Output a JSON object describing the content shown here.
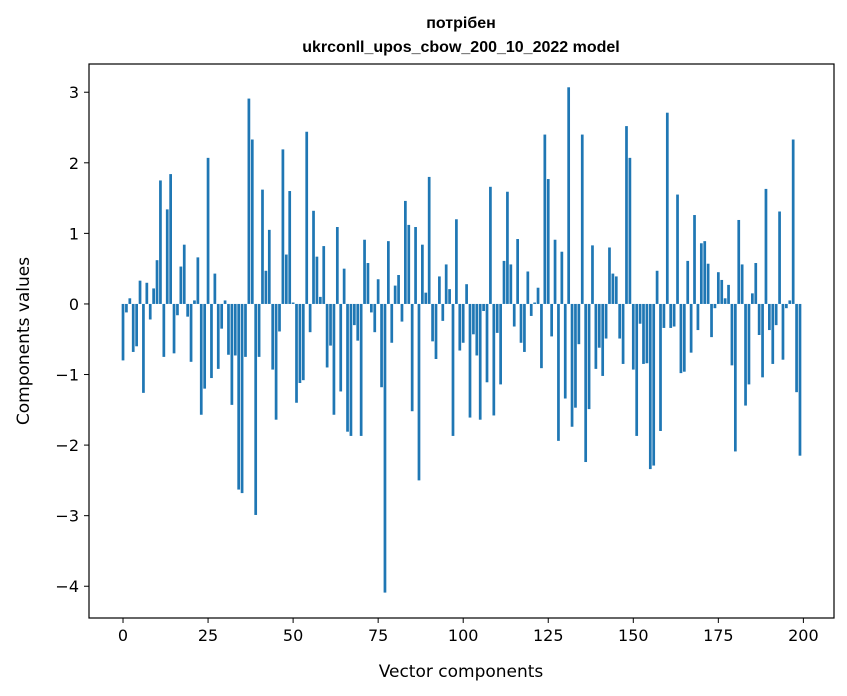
{
  "chart_data": {
    "type": "bar",
    "title_line1": "потрібен",
    "title_line2": "ukrconll_upos_cbow_200_10_2022 model",
    "xlabel": "Vector components",
    "ylabel": "Components values",
    "xlim": [
      -10,
      209
    ],
    "ylim": [
      -4.45,
      3.4
    ],
    "x_ticks": [
      0,
      25,
      50,
      75,
      100,
      125,
      150,
      175,
      200
    ],
    "y_ticks": [
      -4,
      -3,
      -2,
      -1,
      0,
      1,
      2,
      3
    ],
    "grid": false,
    "color": "#1f77b4",
    "x": [
      0,
      1,
      2,
      3,
      4,
      5,
      6,
      7,
      8,
      9,
      10,
      11,
      12,
      13,
      14,
      15,
      16,
      17,
      18,
      19,
      20,
      21,
      22,
      23,
      24,
      25,
      26,
      27,
      28,
      29,
      30,
      31,
      32,
      33,
      34,
      35,
      36,
      37,
      38,
      39,
      40,
      41,
      42,
      43,
      44,
      45,
      46,
      47,
      48,
      49,
      50,
      51,
      52,
      53,
      54,
      55,
      56,
      57,
      58,
      59,
      60,
      61,
      62,
      63,
      64,
      65,
      66,
      67,
      68,
      69,
      70,
      71,
      72,
      73,
      74,
      75,
      76,
      77,
      78,
      79,
      80,
      81,
      82,
      83,
      84,
      85,
      86,
      87,
      88,
      89,
      90,
      91,
      92,
      93,
      94,
      95,
      96,
      97,
      98,
      99,
      100,
      101,
      102,
      103,
      104,
      105,
      106,
      107,
      108,
      109,
      110,
      111,
      112,
      113,
      114,
      115,
      116,
      117,
      118,
      119,
      120,
      121,
      122,
      123,
      124,
      125,
      126,
      127,
      128,
      129,
      130,
      131,
      132,
      133,
      134,
      135,
      136,
      137,
      138,
      139,
      140,
      141,
      142,
      143,
      144,
      145,
      146,
      147,
      148,
      149,
      150,
      151,
      152,
      153,
      154,
      155,
      156,
      157,
      158,
      159,
      160,
      161,
      162,
      163,
      164,
      165,
      166,
      167,
      168,
      169,
      170,
      171,
      172,
      173,
      174,
      175,
      176,
      177,
      178,
      179,
      180,
      181,
      182,
      183,
      184,
      185,
      186,
      187,
      188,
      189,
      190,
      191,
      192,
      193,
      194,
      195,
      196,
      197,
      198,
      199
    ],
    "values": [
      -0.8,
      -0.12,
      0.08,
      -0.68,
      -0.6,
      0.33,
      -1.26,
      0.3,
      -0.22,
      0.22,
      0.62,
      1.75,
      -0.75,
      1.34,
      1.84,
      -0.7,
      -0.16,
      0.53,
      0.84,
      -0.18,
      -0.82,
      0.05,
      0.66,
      -1.57,
      -1.2,
      2.07,
      -1.05,
      0.43,
      -0.92,
      -0.35,
      0.05,
      -0.72,
      -1.43,
      -0.73,
      -2.63,
      -2.68,
      -0.75,
      2.91,
      2.33,
      -2.99,
      -0.75,
      1.62,
      0.47,
      1.05,
      -0.93,
      -1.64,
      -0.39,
      2.19,
      0.7,
      1.6,
      0.02,
      -1.4,
      -1.12,
      -1.08,
      2.44,
      -0.4,
      1.32,
      0.67,
      0.1,
      0.82,
      -0.9,
      -0.59,
      -1.57,
      1.09,
      -1.24,
      0.5,
      -1.81,
      -1.87,
      -0.3,
      -0.52,
      -1.87,
      0.91,
      0.58,
      -0.12,
      -0.4,
      0.35,
      -1.18,
      -4.09,
      0.89,
      -0.55,
      0.26,
      0.41,
      -0.25,
      1.46,
      1.12,
      -1.52,
      1.09,
      -2.5,
      0.84,
      0.16,
      1.8,
      -0.53,
      -0.78,
      0.39,
      -0.24,
      0.56,
      0.21,
      -1.87,
      1.2,
      -0.66,
      -0.55,
      0.28,
      -1.61,
      -0.43,
      -0.73,
      -1.64,
      -0.1,
      -1.11,
      1.66,
      -1.58,
      -0.41,
      -1.14,
      0.61,
      1.59,
      0.56,
      -0.32,
      0.92,
      -0.55,
      -0.68,
      0.46,
      -0.17,
      0.02,
      0.23,
      -0.91,
      2.4,
      1.77,
      -0.46,
      0.91,
      -1.94,
      0.74,
      -1.34,
      3.07,
      -1.74,
      -1.47,
      -0.57,
      2.4,
      -2.24,
      -1.49,
      0.83,
      -0.92,
      -0.62,
      -1.02,
      -0.49,
      0.8,
      0.43,
      0.39,
      -0.49,
      -0.85,
      2.52,
      2.07,
      -0.93,
      -1.87,
      -0.28,
      -0.85,
      -0.84,
      -2.34,
      -2.29,
      0.47,
      -1.8,
      -0.34,
      2.71,
      -0.34,
      -0.32,
      1.55,
      -0.98,
      -0.96,
      0.61,
      -0.69,
      1.26,
      -0.37,
      0.86,
      0.89,
      0.57,
      -0.47,
      -0.06,
      0.45,
      0.34,
      0.08,
      0.27,
      -0.87,
      -2.09,
      1.19,
      0.56,
      -1.44,
      -1.14,
      0.15,
      0.58,
      -0.44,
      -1.04,
      1.63,
      -0.37,
      -0.85,
      -0.3,
      1.31,
      -0.79,
      -0.06,
      0.05,
      2.33,
      -1.25,
      -2.15
    ]
  }
}
